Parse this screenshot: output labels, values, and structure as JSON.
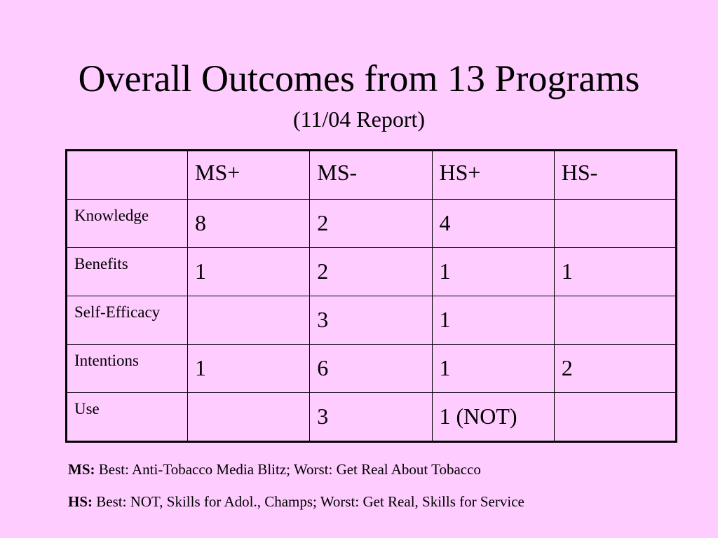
{
  "title": "Overall Outcomes from 13 Programs",
  "subtitle": "(11/04 Report)",
  "table": {
    "corner": "",
    "columns": [
      "MS+",
      "MS-",
      "HS+",
      "HS-"
    ],
    "rows": [
      {
        "label": "Knowledge",
        "cells": [
          "8",
          "2",
          "4",
          ""
        ]
      },
      {
        "label": "Benefits",
        "cells": [
          "1",
          "2",
          "1",
          "1"
        ]
      },
      {
        "label": "Self-Efficacy",
        "cells": [
          "",
          "3",
          "1",
          ""
        ]
      },
      {
        "label": "Intentions",
        "cells": [
          "1",
          "6",
          "1",
          "2"
        ]
      },
      {
        "label": "Use",
        "cells": [
          "",
          "3",
          "1 (NOT)",
          ""
        ]
      }
    ]
  },
  "notes": [
    {
      "key": "MS:",
      "text": "Best: Anti-Tobacco Media Blitz; Worst: Get Real About Tobacco"
    },
    {
      "key": "HS:",
      "text": "Best: NOT, Skills for Adol., Champs; Worst: Get Real, Skills for Service"
    }
  ],
  "colors": {
    "background": "#FFCCFF",
    "text": "#000000"
  }
}
